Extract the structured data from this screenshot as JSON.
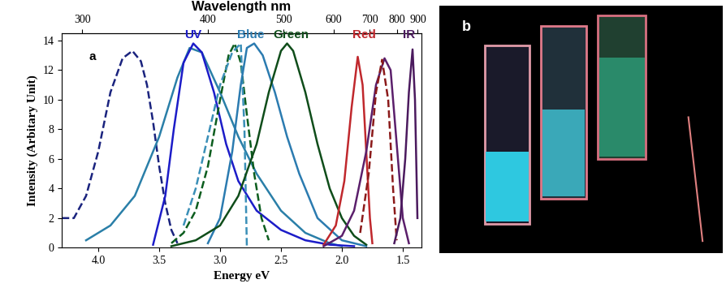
{
  "chart_data": {
    "type": "line",
    "x_label": "Energy eV",
    "y_label": "Intensity (Arbitary Unit)",
    "top_axis": {
      "label": "Wavelength nm",
      "ticks": [
        300,
        400,
        500,
        600,
        700,
        800,
        900
      ]
    },
    "xlim": [
      4.3,
      1.35
    ],
    "xticks": [
      4.0,
      3.5,
      3.0,
      2.5,
      2.0,
      1.5
    ],
    "ylim": [
      0,
      14.5
    ],
    "yticks": [
      0,
      2,
      4,
      6,
      8,
      10,
      12,
      14
    ],
    "grid": false,
    "series": [
      {
        "color": "#1a237e",
        "line_style": "dashed",
        "x": [
          4.3,
          4.2,
          4.1,
          4.0,
          3.9,
          3.8,
          3.72,
          3.65,
          3.6,
          3.55,
          3.5,
          3.45,
          3.4,
          3.35
        ],
        "values": [
          2.0,
          2.0,
          3.5,
          6.5,
          10.5,
          12.8,
          13.3,
          12.6,
          11.0,
          8.5,
          5.5,
          3.0,
          1.2,
          0.3
        ]
      },
      {
        "color": "#2a7fa8",
        "line_style": "solid",
        "x": [
          4.1,
          3.9,
          3.7,
          3.5,
          3.35,
          3.25,
          3.15,
          3.0,
          2.85,
          2.7,
          2.5,
          2.3,
          2.1,
          2.0
        ],
        "values": [
          0.5,
          1.5,
          3.5,
          7.5,
          11.5,
          13.5,
          13.2,
          10.5,
          7.5,
          5.0,
          2.5,
          1.0,
          0.3,
          0.1
        ]
      },
      {
        "color": "#1c1cc8",
        "line_style": "solid",
        "x": [
          3.55,
          3.45,
          3.38,
          3.3,
          3.22,
          3.15,
          3.05,
          2.95,
          2.85,
          2.7,
          2.5,
          2.3,
          2.1,
          1.9
        ],
        "values": [
          0.2,
          3.5,
          8.0,
          12.5,
          13.8,
          13.2,
          10.5,
          7.0,
          4.5,
          2.5,
          1.2,
          0.5,
          0.2,
          0.1
        ]
      },
      {
        "color": "#0b5d1e",
        "line_style": "dashed",
        "x": [
          3.4,
          3.3,
          3.2,
          3.1,
          3.0,
          2.93,
          2.88,
          2.83,
          2.78,
          2.72,
          2.66,
          2.6
        ],
        "values": [
          0.3,
          1.0,
          2.5,
          5.5,
          10.0,
          13.0,
          13.8,
          12.5,
          9.0,
          5.0,
          2.0,
          0.5
        ]
      },
      {
        "color": "#3a8fb7",
        "line_style": "dashed",
        "x": [
          3.3,
          3.2,
          3.1,
          3.0,
          2.9,
          2.83,
          2.8,
          2.78
        ],
        "values": [
          1.5,
          4.0,
          7.5,
          11.0,
          13.2,
          13.8,
          8.0,
          0.0
        ]
      },
      {
        "color": "#2b7bb0",
        "line_style": "solid",
        "x": [
          3.1,
          3.0,
          2.9,
          2.83,
          2.78,
          2.72,
          2.65,
          2.55,
          2.45,
          2.35,
          2.2,
          2.0,
          1.8
        ],
        "values": [
          0.3,
          2.0,
          6.5,
          11.0,
          13.5,
          13.8,
          13.0,
          10.5,
          7.5,
          5.0,
          2.0,
          0.5,
          0.1
        ]
      },
      {
        "color": "#0f4d1a",
        "line_style": "solid",
        "x": [
          3.4,
          3.2,
          3.0,
          2.85,
          2.7,
          2.6,
          2.5,
          2.45,
          2.4,
          2.3,
          2.2,
          2.1,
          2.0,
          1.9,
          1.8
        ],
        "values": [
          0.1,
          0.5,
          1.5,
          3.5,
          7.0,
          10.5,
          13.3,
          13.8,
          13.3,
          10.5,
          7.0,
          4.0,
          2.0,
          0.8,
          0.2
        ]
      },
      {
        "color": "#c0282d",
        "line_style": "solid",
        "x": [
          2.15,
          2.05,
          1.98,
          1.92,
          1.87,
          1.83,
          1.8,
          1.77,
          1.75
        ],
        "values": [
          0.2,
          1.5,
          4.5,
          9.5,
          12.9,
          11.0,
          6.5,
          2.0,
          0.3
        ]
      },
      {
        "color": "#5b1f6b",
        "line_style": "solid",
        "x": [
          2.15,
          2.0,
          1.9,
          1.8,
          1.72,
          1.65,
          1.6,
          1.55,
          1.5,
          1.45
        ],
        "values": [
          0.1,
          0.8,
          2.5,
          6.5,
          11.0,
          12.8,
          12.0,
          7.0,
          2.0,
          0.3
        ]
      },
      {
        "color": "#8b1a1a",
        "line_style": "dashed",
        "x": [
          1.85,
          1.78,
          1.72,
          1.67,
          1.62,
          1.58,
          1.55
        ],
        "values": [
          1.0,
          5.0,
          10.5,
          12.7,
          10.0,
          4.0,
          0.5
        ]
      },
      {
        "color": "#4b1a5e",
        "line_style": "solid",
        "x": [
          1.57,
          1.52,
          1.48,
          1.45,
          1.42,
          1.4,
          1.38
        ],
        "values": [
          0.3,
          2.0,
          6.0,
          10.5,
          13.4,
          10.0,
          2.0
        ]
      }
    ],
    "annotations": [
      {
        "text": "a",
        "x": 4.05,
        "y": 12.5,
        "color": "#000000"
      },
      {
        "text": "UV",
        "x": 3.22,
        "y": 14.0,
        "color": "#1c1cc8"
      },
      {
        "text": "Blue",
        "x": 2.75,
        "y": 14.0,
        "color": "#2b7bb0"
      },
      {
        "text": "Green",
        "x": 2.42,
        "y": 14.0,
        "color": "#0f4d1a"
      },
      {
        "text": "Red",
        "x": 1.82,
        "y": 14.0,
        "color": "#c0282d"
      },
      {
        "text": "IR",
        "x": 1.45,
        "y": 14.0,
        "color": "#4b1a5e"
      }
    ]
  },
  "photo": {
    "label": "b"
  }
}
